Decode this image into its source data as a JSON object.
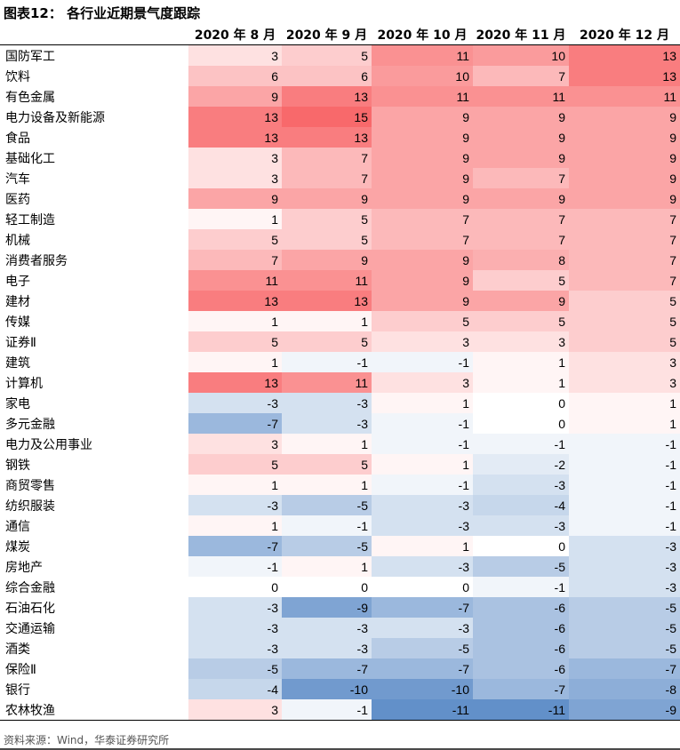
{
  "title": "图表12： 各行业近期景气度跟踪",
  "columns": [
    "2020 年 8 月",
    "2020 年 9 月",
    "2020 年 10 月",
    "2020 年 11 月",
    "2020 年 12 月"
  ],
  "rows": [
    {
      "name": "国防军工",
      "values": [
        3,
        5,
        11,
        10,
        13
      ]
    },
    {
      "name": "饮料",
      "values": [
        6,
        6,
        10,
        7,
        13
      ]
    },
    {
      "name": "有色金属",
      "values": [
        9,
        13,
        11,
        11,
        11
      ]
    },
    {
      "name": "电力设备及新能源",
      "values": [
        13,
        15,
        9,
        9,
        9
      ]
    },
    {
      "name": "食品",
      "values": [
        13,
        13,
        9,
        9,
        9
      ]
    },
    {
      "name": "基础化工",
      "values": [
        3,
        7,
        9,
        9,
        9
      ]
    },
    {
      "name": "汽车",
      "values": [
        3,
        7,
        9,
        7,
        9
      ]
    },
    {
      "name": "医药",
      "values": [
        9,
        9,
        9,
        9,
        9
      ]
    },
    {
      "name": "轻工制造",
      "values": [
        1,
        5,
        7,
        7,
        7
      ]
    },
    {
      "name": "机械",
      "values": [
        5,
        5,
        7,
        7,
        7
      ]
    },
    {
      "name": "消费者服务",
      "values": [
        7,
        9,
        9,
        8,
        7
      ]
    },
    {
      "name": "电子",
      "values": [
        11,
        11,
        9,
        5,
        7
      ]
    },
    {
      "name": "建材",
      "values": [
        13,
        13,
        9,
        9,
        5
      ]
    },
    {
      "name": "传媒",
      "values": [
        1,
        1,
        5,
        5,
        5
      ]
    },
    {
      "name": "证券Ⅱ",
      "values": [
        5,
        5,
        3,
        3,
        5
      ]
    },
    {
      "name": "建筑",
      "values": [
        1,
        -1,
        -1,
        1,
        3
      ]
    },
    {
      "name": "计算机",
      "values": [
        13,
        11,
        3,
        1,
        3
      ]
    },
    {
      "name": "家电",
      "values": [
        -3,
        -3,
        1,
        0,
        1
      ]
    },
    {
      "name": "多元金融",
      "values": [
        -7,
        -3,
        -1,
        0,
        1
      ]
    },
    {
      "name": "电力及公用事业",
      "values": [
        3,
        1,
        -1,
        -1,
        -1
      ]
    },
    {
      "name": "钢铁",
      "values": [
        5,
        5,
        1,
        -2,
        -1
      ]
    },
    {
      "name": "商贸零售",
      "values": [
        1,
        1,
        -1,
        -3,
        -1
      ]
    },
    {
      "name": "纺织服装",
      "values": [
        -3,
        -5,
        -3,
        -4,
        -1
      ]
    },
    {
      "name": "通信",
      "values": [
        1,
        -1,
        -3,
        -3,
        -1
      ]
    },
    {
      "name": "煤炭",
      "values": [
        -7,
        -5,
        1,
        0,
        -3
      ]
    },
    {
      "name": "房地产",
      "values": [
        -1,
        1,
        -3,
        -5,
        -3
      ]
    },
    {
      "name": "综合金融",
      "values": [
        0,
        0,
        0,
        -1,
        -3
      ]
    },
    {
      "name": "石油石化",
      "values": [
        -3,
        -9,
        -7,
        -6,
        -5
      ]
    },
    {
      "name": "交通运输",
      "values": [
        -3,
        -3,
        -3,
        -6,
        -5
      ]
    },
    {
      "name": "酒类",
      "values": [
        -3,
        -3,
        -5,
        -6,
        -5
      ]
    },
    {
      "name": "保险Ⅱ",
      "values": [
        -5,
        -7,
        -7,
        -6,
        -7
      ]
    },
    {
      "name": "银行",
      "values": [
        -4,
        -10,
        -10,
        -7,
        -8
      ]
    },
    {
      "name": "农林牧渔",
      "values": [
        3,
        -1,
        -11,
        -11,
        -9
      ]
    }
  ],
  "colors": {
    "positive": "#f8696b",
    "negative": "#5a8ac6",
    "neutral": "#ffffff"
  },
  "source": "资料来源：Wind，华泰证券研究所"
}
